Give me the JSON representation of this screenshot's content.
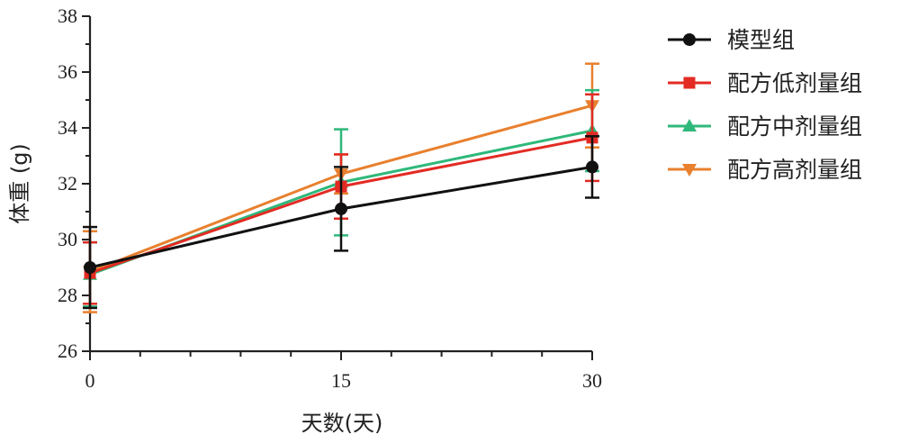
{
  "chart_data": {
    "type": "line",
    "xlabel": "天数(天)",
    "ylabel": "体重 (g)",
    "xlim": [
      0,
      30
    ],
    "ylim": [
      26,
      38
    ],
    "xticks": [
      0,
      15,
      30
    ],
    "yticks": [
      26,
      28,
      30,
      32,
      34,
      36,
      38
    ],
    "grid": false,
    "legend_position": "right",
    "series": [
      {
        "name": "模型组",
        "color": "#111111",
        "marker": "circle",
        "x": [
          0,
          15,
          30
        ],
        "y": [
          29.0,
          31.1,
          32.6
        ],
        "err": [
          1.45,
          1.5,
          1.1
        ]
      },
      {
        "name": "配方低剂量组",
        "color": "#e32b23",
        "marker": "square",
        "x": [
          0,
          15,
          30
        ],
        "y": [
          28.8,
          31.9,
          33.65
        ],
        "err": [
          1.1,
          1.15,
          1.55
        ]
      },
      {
        "name": "配方中剂量组",
        "color": "#2eb87a",
        "marker": "triangle-up",
        "x": [
          0,
          15,
          30
        ],
        "y": [
          28.75,
          32.05,
          33.9
        ],
        "err": [
          1.15,
          1.9,
          1.45
        ]
      },
      {
        "name": "配方高剂量组",
        "color": "#e8802e",
        "marker": "triangle-down",
        "x": [
          0,
          15,
          30
        ],
        "y": [
          28.85,
          32.35,
          34.8
        ],
        "err": [
          1.45,
          0.7,
          1.5
        ]
      }
    ]
  }
}
